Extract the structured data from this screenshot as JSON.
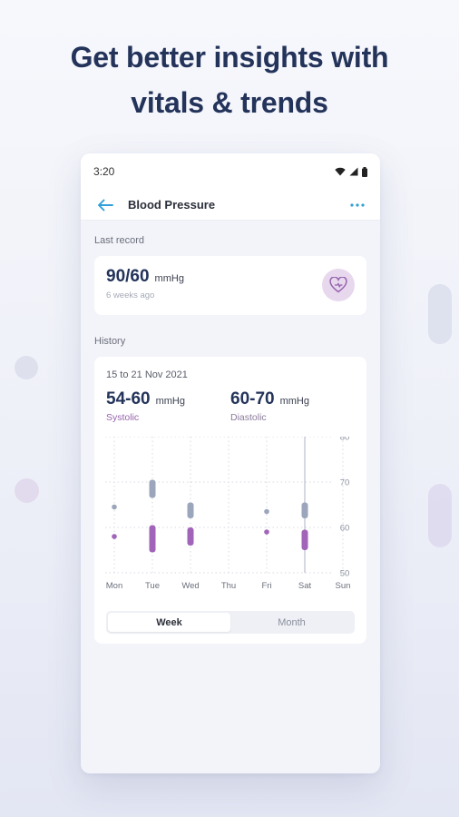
{
  "headline": {
    "line1": "Get better insights with",
    "line2": "vitals & trends"
  },
  "status_bar": {
    "time": "3:20"
  },
  "app_bar": {
    "title": "Blood Pressure"
  },
  "last_record": {
    "label": "Last record",
    "value": "90/60",
    "unit": "mmHg",
    "ago": "6 weeks ago"
  },
  "history": {
    "label": "History",
    "date_range": "15 to 21 Nov 2021",
    "systolic": {
      "value": "54-60",
      "unit": "mmHg",
      "label": "Systolic"
    },
    "diastolic": {
      "value": "60-70",
      "unit": "mmHg",
      "label": "Diastolic"
    },
    "tabs": [
      {
        "label": "Week",
        "active": true
      },
      {
        "label": "Month",
        "active": false
      }
    ]
  },
  "chart_data": {
    "type": "range-bar",
    "categories": [
      "Mon",
      "Tue",
      "Wed",
      "Thu",
      "Fri",
      "Sat",
      "Sun"
    ],
    "y_ticks": [
      "80",
      "70",
      "60",
      "50"
    ],
    "ylim": [
      50,
      80
    ],
    "grid": true,
    "highlight_category": "Sat",
    "series": [
      {
        "color": "#9ba6bc",
        "ranges": [
          [
            64.5,
            64.5
          ],
          [
            66.5,
            70.5
          ],
          [
            62,
            65.5
          ],
          null,
          [
            63.5,
            63.5
          ],
          [
            62,
            65.5
          ],
          null
        ]
      },
      {
        "color": "#a164b8",
        "ranges": [
          [
            58,
            58
          ],
          [
            54.5,
            60.5
          ],
          [
            56,
            60
          ],
          null,
          [
            59,
            59
          ],
          [
            55,
            59.5
          ],
          null
        ]
      }
    ]
  },
  "colors": {
    "heading": "#23335a",
    "accent": "#2f9fd8",
    "systolic": "#9563ad",
    "series_grey": "#9ba6bc"
  }
}
